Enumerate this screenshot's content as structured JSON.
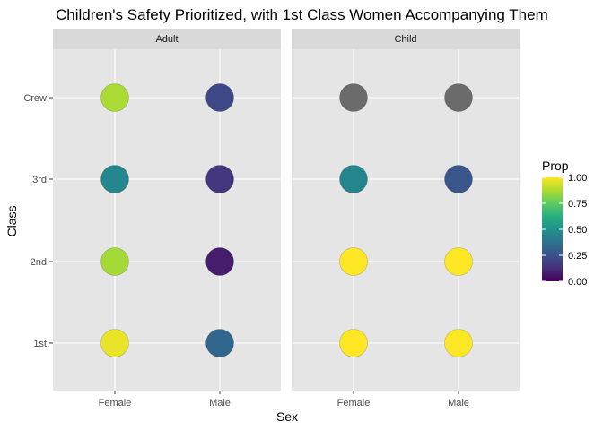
{
  "chart_data": {
    "type": "scatter",
    "title": "Children's Safety Prioritized, with 1st Class Women Accompanying Them",
    "xlabel": "Sex",
    "ylabel": "Class",
    "x_categories": [
      "Female",
      "Male"
    ],
    "y_categories": [
      "1st",
      "2nd",
      "3rd",
      "Crew"
    ],
    "facets": [
      {
        "label": "Adult",
        "points": [
          {
            "sex": "Female",
            "class": "Crew",
            "prop": 0.87
          },
          {
            "sex": "Male",
            "class": "Crew",
            "prop": 0.22
          },
          {
            "sex": "Female",
            "class": "3rd",
            "prop": 0.46
          },
          {
            "sex": "Male",
            "class": "3rd",
            "prop": 0.16
          },
          {
            "sex": "Female",
            "class": "2nd",
            "prop": 0.86
          },
          {
            "sex": "Male",
            "class": "2nd",
            "prop": 0.08
          },
          {
            "sex": "Female",
            "class": "1st",
            "prop": 0.97
          },
          {
            "sex": "Male",
            "class": "1st",
            "prop": 0.33
          }
        ]
      },
      {
        "label": "Child",
        "points": [
          {
            "sex": "Female",
            "class": "Crew",
            "prop": null
          },
          {
            "sex": "Male",
            "class": "Crew",
            "prop": null
          },
          {
            "sex": "Female",
            "class": "3rd",
            "prop": 0.45
          },
          {
            "sex": "Male",
            "class": "3rd",
            "prop": 0.27
          },
          {
            "sex": "Female",
            "class": "2nd",
            "prop": 1.0
          },
          {
            "sex": "Male",
            "class": "2nd",
            "prop": 1.0
          },
          {
            "sex": "Female",
            "class": "1st",
            "prop": 1.0
          },
          {
            "sex": "Male",
            "class": "1st",
            "prop": 1.0
          }
        ]
      }
    ],
    "legend": {
      "title": "Prop",
      "position": "right",
      "range": [
        0,
        1
      ],
      "breaks": [
        "0.00",
        "0.25",
        "0.50",
        "0.75",
        "1.00"
      ],
      "palette": "viridis",
      "na_color": "#6b6b6b"
    },
    "panel_background": "#e5e5e5",
    "strip_background": "#d9d9d9",
    "grid": true
  }
}
